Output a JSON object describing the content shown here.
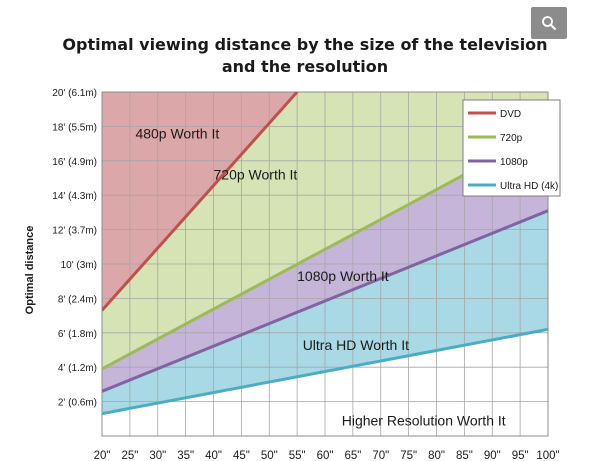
{
  "title_lines": [
    "Optimal viewing distance by the size of the television",
    "and the resolution"
  ],
  "zoom_icon": "magnifier-icon",
  "chart_data": {
    "type": "line",
    "title": "Optimal viewing distance by the size of the television and the resolution",
    "xlabel": "",
    "ylabel": "Optimal distance",
    "x": [
      20,
      25,
      30,
      35,
      40,
      45,
      50,
      55,
      60,
      65,
      70,
      75,
      80,
      85,
      90,
      95,
      100
    ],
    "x_tick_labels": [
      "20\"",
      "25\"",
      "30\"",
      "35\"",
      "40\"",
      "45\"",
      "50\"",
      "55\"",
      "60\"",
      "65\"",
      "70\"",
      "75\"",
      "80\"",
      "85\"",
      "90\"",
      "95\"",
      "100\""
    ],
    "y_ticks": [
      2,
      4,
      6,
      8,
      10,
      12,
      14,
      16,
      18,
      20
    ],
    "y_tick_labels": [
      "2' (0.6m)",
      "4' (1.2m)",
      "6' (1.8m)",
      "8' (2.4m)",
      "10' (3m)",
      "12' (3.7m)",
      "14' (4.3m)",
      "16' (4.9m)",
      "18' (5.5m)",
      "20' (6.1m)"
    ],
    "xlim": [
      20,
      100
    ],
    "ylim": [
      0,
      20
    ],
    "grid": true,
    "legend_position": "top-right",
    "series": [
      {
        "name": "DVD",
        "color": "#c0504d",
        "x": [
          20,
          55
        ],
        "y": [
          7.3,
          20
        ]
      },
      {
        "name": "720p",
        "color": "#9bbb59",
        "x": [
          20,
          100
        ],
        "y": [
          3.9,
          17.8
        ]
      },
      {
        "name": "1080p",
        "color": "#8064a2",
        "x": [
          20,
          100
        ],
        "y": [
          2.6,
          13.1
        ]
      },
      {
        "name": "Ultra HD (4k)",
        "color": "#4bacc6",
        "x": [
          20,
          100
        ],
        "y": [
          1.3,
          6.2
        ]
      }
    ],
    "regions": [
      {
        "label": "480p Worth It",
        "color": "#dca7a8"
      },
      {
        "label": "720p Worth It",
        "color": "#d5e3b5"
      },
      {
        "label": "1080p Worth It",
        "color": "#c5b6d9"
      },
      {
        "label": "Ultra HD Worth It",
        "color": "#a8d9e4"
      },
      {
        "label": "Higher Resolution Worth It",
        "color": "#ffffff"
      }
    ],
    "region_label_points": [
      [
        26,
        17.3
      ],
      [
        40,
        14.9
      ],
      [
        55,
        9.0
      ],
      [
        56,
        5.0
      ],
      [
        63,
        0.6
      ]
    ]
  }
}
